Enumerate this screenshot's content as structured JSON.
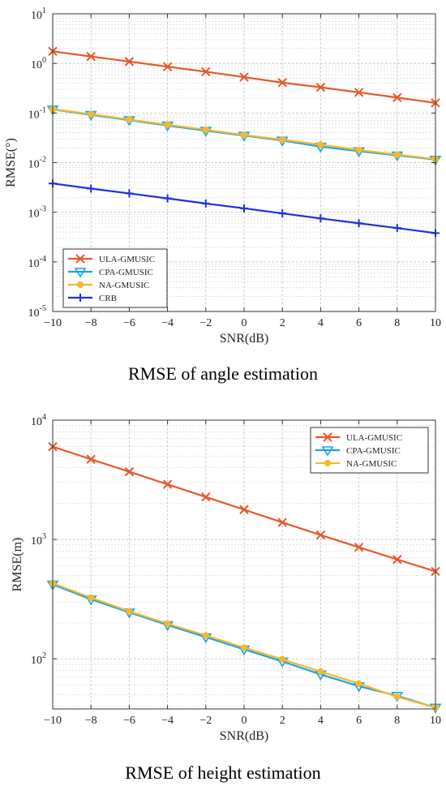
{
  "captions": {
    "angle": "RMSE of angle estimation",
    "height": "RMSE of height estimation"
  },
  "colors": {
    "ula": "#e8572a",
    "cpa": "#1aa6d9",
    "na": "#f5b731",
    "crb": "#1f2fe0",
    "grid_major": "#c8c8c8",
    "grid_minor": "#dcdcdc"
  },
  "chart_data": [
    {
      "type": "line",
      "title": "",
      "xlabel": "SNR(dB)",
      "ylabel": "RMSE(°)",
      "yscale": "log",
      "xlim": [
        -10,
        10
      ],
      "ylim": [
        1e-05,
        10
      ],
      "xticks": [
        -10,
        -8,
        -6,
        -4,
        -2,
        0,
        2,
        4,
        6,
        8,
        10
      ],
      "xtick_labels": [
        "−10",
        "−8",
        "−6",
        "−4",
        "−2",
        "0",
        "2",
        "4",
        "6",
        "8",
        "10"
      ],
      "yticks": [
        {
          "value": 1e-05,
          "base": "10",
          "exp": "-5"
        },
        {
          "value": 0.0001,
          "base": "10",
          "exp": "-4"
        },
        {
          "value": 0.001,
          "base": "10",
          "exp": "-3"
        },
        {
          "value": 0.01,
          "base": "10",
          "exp": "-2"
        },
        {
          "value": 0.1,
          "base": "10",
          "exp": "-1"
        },
        {
          "value": 1,
          "base": "10",
          "exp": "0"
        },
        {
          "value": 10,
          "base": "10",
          "exp": "1"
        }
      ],
      "grid": true,
      "legend_position": "bottom-left",
      "x": [
        -10,
        -8,
        -6,
        -4,
        -2,
        0,
        2,
        4,
        6,
        8,
        10
      ],
      "series": [
        {
          "name": "ULA-GMUSIC",
          "marker": "x",
          "color_key": "ula",
          "values": [
            1.75,
            1.38,
            1.09,
            0.86,
            0.68,
            0.53,
            0.41,
            0.33,
            0.26,
            0.205,
            0.16
          ]
        },
        {
          "name": "CPA-GMUSIC",
          "marker": "triangle-down",
          "color_key": "cpa",
          "values": [
            0.118,
            0.092,
            0.072,
            0.056,
            0.044,
            0.035,
            0.028,
            0.021,
            0.017,
            0.014,
            0.0115
          ]
        },
        {
          "name": "NA-GMUSIC",
          "marker": "circle",
          "color_key": "na",
          "values": [
            0.12,
            0.095,
            0.074,
            0.058,
            0.046,
            0.036,
            0.029,
            0.023,
            0.018,
            0.0145,
            0.0118
          ]
        },
        {
          "name": "CRB",
          "marker": "plus",
          "color_key": "crb",
          "values": [
            0.0038,
            0.003,
            0.0024,
            0.0019,
            0.0015,
            0.0012,
            0.00095,
            0.00075,
            0.0006,
            0.00048,
            0.00038
          ]
        }
      ]
    },
    {
      "type": "line",
      "title": "",
      "xlabel": "SNR(dB)",
      "ylabel": "RMSE(m)",
      "yscale": "log",
      "xlim": [
        -10,
        10
      ],
      "ylim": [
        38,
        10000
      ],
      "xticks": [
        -10,
        -8,
        -6,
        -4,
        -2,
        0,
        2,
        4,
        6,
        8,
        10
      ],
      "xtick_labels": [
        "−10",
        "−8",
        "−6",
        "−4",
        "−2",
        "0",
        "2",
        "4",
        "6",
        "8",
        "10"
      ],
      "yticks": [
        {
          "value": 100,
          "base": "10",
          "exp": "2"
        },
        {
          "value": 1000,
          "base": "10",
          "exp": "3"
        },
        {
          "value": 10000,
          "base": "10",
          "exp": "4"
        }
      ],
      "grid": true,
      "legend_position": "top-right",
      "x": [
        -10,
        -8,
        -6,
        -4,
        -2,
        0,
        2,
        4,
        6,
        8,
        10
      ],
      "series": [
        {
          "name": "ULA-GMUSIC",
          "marker": "x",
          "color_key": "ula",
          "values": [
            6000,
            4700,
            3700,
            2900,
            2270,
            1780,
            1390,
            1090,
            860,
            680,
            540
          ]
        },
        {
          "name": "CPA-GMUSIC",
          "marker": "triangle-down",
          "color_key": "cpa",
          "values": [
            420,
            315,
            245,
            192,
            152,
            120,
            95,
            74,
            59,
            49,
            39
          ]
        },
        {
          "name": "NA-GMUSIC",
          "marker": "circle",
          "color_key": "na",
          "values": [
            430,
            325,
            250,
            197,
            157,
            124,
            99,
            78,
            62,
            48,
            39
          ]
        }
      ]
    }
  ]
}
